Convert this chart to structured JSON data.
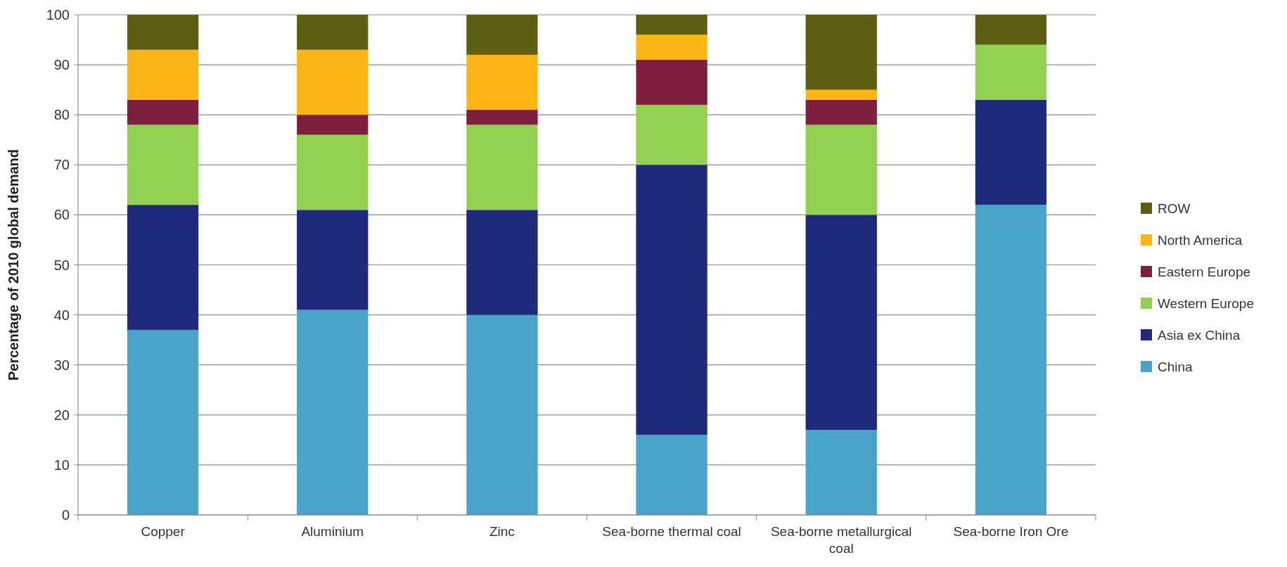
{
  "chart_data": {
    "type": "bar",
    "stacked": true,
    "ylabel": "Percentage of 2010 global demand",
    "categories": [
      "Copper",
      "Aluminium",
      "Zinc",
      "Sea-borne thermal coal",
      "Sea-borne metallurgical coal",
      "Sea-borne Iron Ore"
    ],
    "series": [
      {
        "name": "China",
        "color": "#4aa3c8",
        "values": [
          37,
          41,
          40,
          16,
          17,
          62
        ]
      },
      {
        "name": "Asia ex China",
        "color": "#1f2a7a",
        "values": [
          25,
          20,
          21,
          54,
          43,
          21
        ]
      },
      {
        "name": "Western Europe",
        "color": "#92d050",
        "values": [
          16,
          15,
          17,
          12,
          18,
          11
        ]
      },
      {
        "name": "Eastern Europe",
        "color": "#7f1f3f",
        "values": [
          5,
          4,
          3,
          9,
          5,
          0
        ]
      },
      {
        "name": "North America",
        "color": "#fdb415",
        "values": [
          10,
          13,
          11,
          5,
          2,
          0
        ]
      },
      {
        "name": "ROW",
        "color": "#5e5e12",
        "values": [
          7,
          7,
          8,
          4,
          15,
          6
        ]
      }
    ],
    "ylim": [
      0,
      100
    ],
    "yticks": [
      0,
      10,
      20,
      30,
      40,
      50,
      60,
      70,
      80,
      90,
      100
    ],
    "grid": "y",
    "legend": "right"
  }
}
